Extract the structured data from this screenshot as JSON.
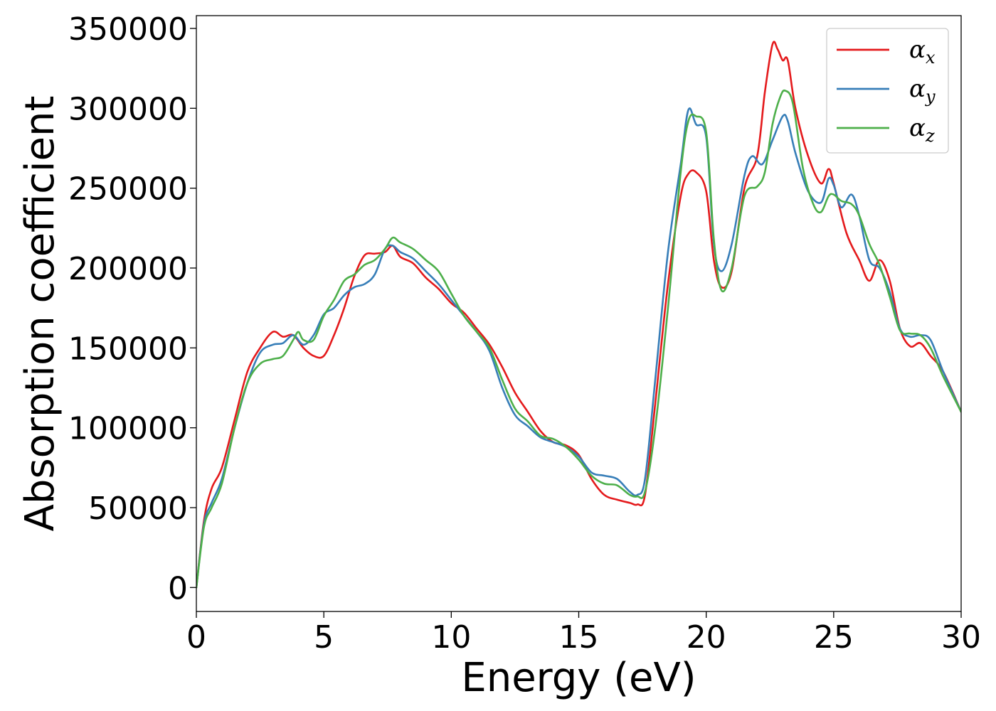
{
  "chart_data": {
    "type": "line",
    "title": "",
    "xlabel": "Energy (eV)",
    "ylabel": "Absorption coefficient",
    "xlim": [
      0,
      30
    ],
    "ylim": [
      -15000,
      358000
    ],
    "xticks": [
      0,
      5,
      10,
      15,
      20,
      25,
      30
    ],
    "xtick_labels": [
      "0",
      "5",
      "10",
      "15",
      "20",
      "25",
      "30"
    ],
    "yticks": [
      0,
      50000,
      100000,
      150000,
      200000,
      250000,
      300000,
      350000
    ],
    "ytick_labels": [
      "0",
      "50000",
      "100000",
      "150000",
      "200000",
      "250000",
      "300000",
      "350000"
    ],
    "grid": false,
    "legend_position": "top-right",
    "series": [
      {
        "name": "α",
        "subscript": "x",
        "color": "#e41a1c",
        "x": [
          0,
          0.3,
          0.6,
          1.0,
          1.5,
          2.0,
          2.5,
          3.0,
          3.4,
          3.8,
          4.2,
          4.6,
          5.0,
          5.4,
          5.8,
          6.2,
          6.6,
          7.0,
          7.4,
          7.7,
          8.0,
          8.5,
          9.0,
          9.5,
          10.0,
          10.5,
          11.0,
          11.5,
          12.0,
          12.5,
          13.0,
          13.5,
          14.0,
          14.5,
          15.0,
          15.5,
          16.0,
          16.5,
          17.0,
          17.3,
          17.6,
          18.0,
          18.5,
          19.0,
          19.3,
          19.6,
          20.0,
          20.3,
          20.6,
          21.0,
          21.5,
          22.0,
          22.3,
          22.6,
          22.8,
          23.0,
          23.2,
          23.5,
          24.0,
          24.5,
          24.8,
          25.0,
          25.5,
          26.0,
          26.4,
          26.8,
          27.2,
          27.6,
          28.0,
          28.4,
          28.8,
          29.3,
          30.0
        ],
        "y": [
          0,
          42000,
          62000,
          75000,
          105000,
          135000,
          150000,
          160000,
          157000,
          158000,
          150000,
          145000,
          145000,
          158000,
          175000,
          195000,
          208000,
          209000,
          210000,
          214000,
          207000,
          203000,
          194000,
          187000,
          178000,
          172000,
          162000,
          152000,
          138000,
          122000,
          110000,
          98000,
          91000,
          89000,
          83000,
          68000,
          58000,
          55000,
          53000,
          52000,
          58000,
          115000,
          190000,
          245000,
          259000,
          260000,
          248000,
          205000,
          188000,
          198000,
          250000,
          270000,
          310000,
          340000,
          337000,
          330000,
          330000,
          300000,
          270000,
          253000,
          262000,
          253000,
          222000,
          205000,
          192000,
          205000,
          192000,
          162000,
          151000,
          153000,
          145000,
          135000,
          110000
        ]
      },
      {
        "name": "α",
        "subscript": "y",
        "color": "#377eb8",
        "x": [
          0,
          0.3,
          0.6,
          1.0,
          1.5,
          2.0,
          2.5,
          3.0,
          3.4,
          3.8,
          4.2,
          4.6,
          5.0,
          5.4,
          5.8,
          6.2,
          6.6,
          7.0,
          7.4,
          7.7,
          8.0,
          8.5,
          9.0,
          9.5,
          10.0,
          10.5,
          11.0,
          11.5,
          12.0,
          12.5,
          13.0,
          13.5,
          14.0,
          14.5,
          15.0,
          15.5,
          16.0,
          16.5,
          17.0,
          17.3,
          17.6,
          18.0,
          18.5,
          19.0,
          19.3,
          19.6,
          20.0,
          20.3,
          20.6,
          21.0,
          21.5,
          21.8,
          22.2,
          22.6,
          23.0,
          23.2,
          23.5,
          24.0,
          24.5,
          24.8,
          25.0,
          25.3,
          25.7,
          26.0,
          26.4,
          26.8,
          27.2,
          27.6,
          28.0,
          28.4,
          28.8,
          29.3,
          30.0
        ],
        "y": [
          0,
          40000,
          53000,
          68000,
          100000,
          128000,
          147000,
          152000,
          153000,
          158000,
          152000,
          158000,
          171000,
          175000,
          183000,
          188000,
          190000,
          196000,
          212000,
          214000,
          210000,
          206000,
          198000,
          190000,
          180000,
          170000,
          160000,
          148000,
          125000,
          108000,
          101000,
          94000,
          91000,
          88000,
          82000,
          72000,
          70000,
          68000,
          60000,
          58000,
          68000,
          130000,
          210000,
          265000,
          299000,
          290000,
          282000,
          215000,
          198000,
          215000,
          258000,
          270000,
          265000,
          280000,
          295000,
          292000,
          272000,
          248000,
          241000,
          256000,
          252000,
          238000,
          246000,
          233000,
          205000,
          200000,
          185000,
          162000,
          157000,
          158000,
          155000,
          135000,
          110000
        ]
      },
      {
        "name": "α",
        "subscript": "z",
        "color": "#4daf4a",
        "x": [
          0,
          0.3,
          0.6,
          1.0,
          1.5,
          2.0,
          2.5,
          3.0,
          3.4,
          3.8,
          4.0,
          4.2,
          4.6,
          5.0,
          5.4,
          5.8,
          6.2,
          6.6,
          7.0,
          7.4,
          7.7,
          8.0,
          8.5,
          9.0,
          9.5,
          10.0,
          10.5,
          11.0,
          11.5,
          12.0,
          12.5,
          13.0,
          13.5,
          14.0,
          14.5,
          15.0,
          15.5,
          16.0,
          16.5,
          17.0,
          17.3,
          17.6,
          18.0,
          18.5,
          19.0,
          19.3,
          19.6,
          20.0,
          20.3,
          20.6,
          21.0,
          21.5,
          22.0,
          22.3,
          22.6,
          22.9,
          23.1,
          23.4,
          23.8,
          24.2,
          24.5,
          24.8,
          25.0,
          25.3,
          25.7,
          26.0,
          26.4,
          26.8,
          27.2,
          27.6,
          28.0,
          28.4,
          28.8,
          29.3,
          30.0
        ],
        "y": [
          0,
          38000,
          50000,
          65000,
          100000,
          128000,
          140000,
          143000,
          145000,
          155000,
          160000,
          155000,
          155000,
          170000,
          180000,
          192000,
          196000,
          202000,
          205000,
          212000,
          219000,
          216000,
          212000,
          205000,
          198000,
          184000,
          170000,
          160000,
          150000,
          130000,
          112000,
          104000,
          95000,
          93000,
          88000,
          80000,
          70000,
          65000,
          64000,
          58000,
          57000,
          60000,
          100000,
          175000,
          260000,
          292000,
          295000,
          285000,
          218000,
          186000,
          200000,
          245000,
          251000,
          260000,
          290000,
          307000,
          311000,
          303000,
          262000,
          240000,
          235000,
          245000,
          246000,
          242000,
          240000,
          233000,
          215000,
          202000,
          182000,
          161000,
          159000,
          158000,
          150000,
          132000,
          110000
        ]
      }
    ]
  }
}
